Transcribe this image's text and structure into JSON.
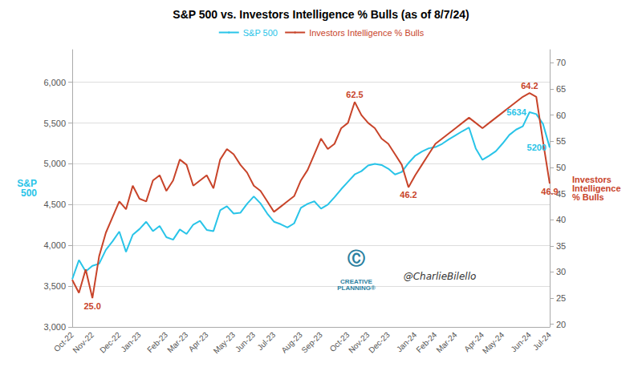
{
  "chart_data": {
    "type": "line",
    "title": "S&P 500 vs. Investors Intelligence % Bulls (as of 8/7/24)",
    "categories": [
      "Oct-22",
      null,
      null,
      "Nov-22",
      null,
      null,
      null,
      "Dec-22",
      null,
      null,
      "Jan-23",
      null,
      null,
      null,
      "Feb-23",
      null,
      null,
      "Mar-23",
      null,
      null,
      "Apr-23",
      null,
      null,
      null,
      "May-23",
      null,
      null,
      "Jun-23",
      null,
      null,
      "Jul-23",
      null,
      null,
      null,
      "Aug-23",
      null,
      null,
      "Sep-23",
      null,
      null,
      null,
      "Oct-23",
      null,
      null,
      "Nov-23",
      null,
      null,
      "Dec-23",
      null,
      null,
      null,
      "Jan-24",
      null,
      null,
      "Feb-24",
      null,
      null,
      "Mar-24",
      null,
      null,
      null,
      "Apr-24",
      null,
      null,
      "May-24",
      null,
      null,
      null,
      "Jun-24",
      null,
      null,
      "Jul-24"
    ],
    "series": [
      {
        "name": "S&P 500",
        "color": "#29C4E8",
        "axis": "y",
        "values": [
          3585,
          3820,
          3680,
          3750,
          3775,
          3945,
          4050,
          4169,
          3920,
          4130,
          4200,
          4290,
          4175,
          4238,
          4100,
          4070,
          4195,
          4140,
          4255,
          4300,
          4190,
          4175,
          4430,
          4480,
          4390,
          4400,
          4510,
          4600,
          4515,
          4390,
          4290,
          4260,
          4220,
          4270,
          4460,
          4510,
          4540,
          4450,
          4500,
          4590,
          4690,
          4780,
          4870,
          4910,
          4980,
          5000,
          4985,
          4940,
          4870,
          4900,
          5010,
          5100,
          5150,
          5190,
          5205,
          5245,
          5300,
          5350,
          5400,
          5445,
          5190,
          5050,
          5100,
          5155,
          5250,
          5355,
          5420,
          5460,
          5634,
          5610,
          5490,
          5200
        ],
        "annotations": [
          {
            "index": 68,
            "y": 5634,
            "text": "5634"
          },
          {
            "index": 71,
            "y": 5200,
            "text": "5200"
          }
        ]
      },
      {
        "name": "Investors Intelligence % Bulls",
        "color": "#C8442A",
        "axis": "y2",
        "values": [
          28.5,
          26.0,
          30.5,
          25.0,
          33.0,
          37.5,
          40.5,
          43.5,
          42.0,
          46.5,
          44.0,
          43.5,
          47.5,
          48.5,
          45.5,
          47.5,
          51.5,
          50.5,
          46.5,
          47.5,
          48.5,
          46.0,
          51.5,
          53.5,
          52.5,
          50.5,
          49.0,
          46.5,
          45.5,
          43.5,
          41.5,
          42.5,
          43.5,
          44.5,
          47.5,
          49.5,
          52.5,
          55.5,
          53.5,
          54.5,
          57.5,
          58.5,
          62.5,
          60.0,
          58.5,
          57.5,
          55.5,
          54.5,
          52.5,
          50.5,
          46.2,
          48.5,
          50.5,
          52.5,
          54.5,
          55.5,
          56.5,
          57.5,
          58.5,
          59.5,
          58.5,
          57.5,
          58.5,
          59.5,
          60.5,
          61.5,
          62.5,
          63.5,
          64.2,
          63.5,
          55.0,
          46.9
        ],
        "annotations": [
          {
            "index": 3,
            "y": 25.0,
            "text": "25.0"
          },
          {
            "index": 42,
            "y": 62.5,
            "text": "62.5"
          },
          {
            "index": 50,
            "y": 46.2,
            "text": "46.2"
          },
          {
            "index": 68,
            "y": 64.2,
            "text": "64.2"
          },
          {
            "index": 71,
            "y": 46.9,
            "text": "46.9"
          }
        ]
      }
    ],
    "ylabel": "S&P\n500",
    "y2label": "Investors\nIntelligence\n% Bulls",
    "ylim": [
      3000,
      6400
    ],
    "yticks": [
      3000,
      3500,
      4000,
      4500,
      5000,
      5500,
      6000
    ],
    "y2lim": [
      19.5,
      72.5
    ],
    "y2ticks": [
      20,
      25,
      30,
      35,
      40,
      45,
      50,
      55,
      60,
      65,
      70
    ],
    "grid": true,
    "legend": "top",
    "annotations": [
      "Ⓒ",
      "CREATIVE\nPLANNING®",
      "@CharlieBilello"
    ]
  }
}
